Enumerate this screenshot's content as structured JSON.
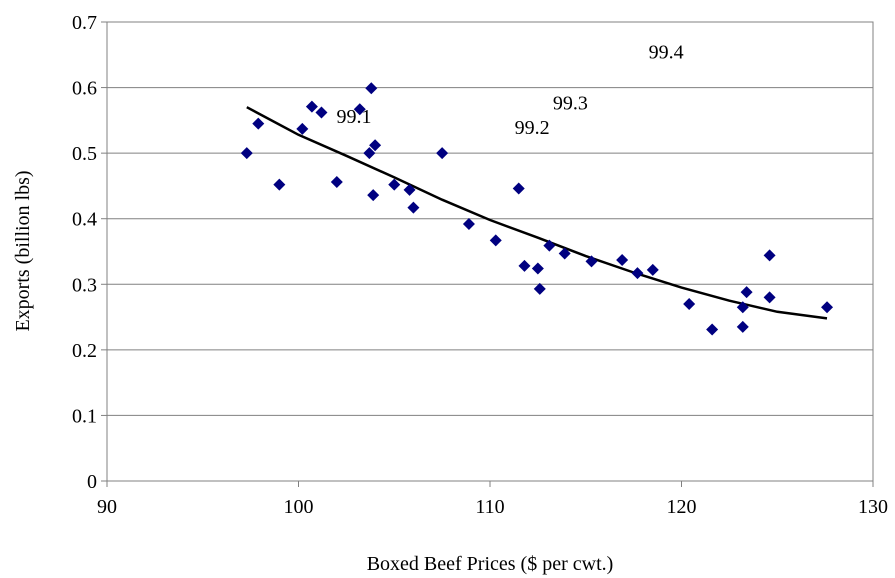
{
  "chart_data": {
    "type": "scatter",
    "xlabel": "Boxed Beef Prices ($ per cwt.)",
    "ylabel": "Exports (billion lbs)",
    "xlim": [
      90,
      130
    ],
    "ylim": [
      0,
      0.7
    ],
    "x_ticks": [
      "90",
      "100",
      "110",
      "120",
      "130"
    ],
    "y_ticks": [
      "0",
      "0.1",
      "0.2",
      "0.3",
      "0.4",
      "0.5",
      "0.6",
      "0.7"
    ],
    "grid": "horizontal",
    "legend": "none",
    "marker": "diamond",
    "colors": {
      "marker": "#000080",
      "trendline": "#000000",
      "grid": "#808080"
    },
    "points": [
      {
        "x": 97.3,
        "y": 0.5
      },
      {
        "x": 97.9,
        "y": 0.545
      },
      {
        "x": 99.0,
        "y": 0.452
      },
      {
        "x": 100.2,
        "y": 0.537
      },
      {
        "x": 100.7,
        "y": 0.571
      },
      {
        "x": 101.2,
        "y": 0.562
      },
      {
        "x": 102.0,
        "y": 0.456
      },
      {
        "x": 103.2,
        "y": 0.567
      },
      {
        "x": 103.7,
        "y": 0.5
      },
      {
        "x": 103.8,
        "y": 0.599
      },
      {
        "x": 103.9,
        "y": 0.436
      },
      {
        "x": 104.0,
        "y": 0.512
      },
      {
        "x": 105.0,
        "y": 0.452
      },
      {
        "x": 105.8,
        "y": 0.444
      },
      {
        "x": 106.0,
        "y": 0.417
      },
      {
        "x": 107.5,
        "y": 0.5
      },
      {
        "x": 108.9,
        "y": 0.392
      },
      {
        "x": 110.3,
        "y": 0.367
      },
      {
        "x": 111.5,
        "y": 0.446
      },
      {
        "x": 111.8,
        "y": 0.328
      },
      {
        "x": 112.5,
        "y": 0.324
      },
      {
        "x": 112.6,
        "y": 0.293
      },
      {
        "x": 113.1,
        "y": 0.359
      },
      {
        "x": 113.9,
        "y": 0.347
      },
      {
        "x": 115.3,
        "y": 0.335
      },
      {
        "x": 116.9,
        "y": 0.337
      },
      {
        "x": 117.7,
        "y": 0.317
      },
      {
        "x": 118.5,
        "y": 0.322
      },
      {
        "x": 120.4,
        "y": 0.27
      },
      {
        "x": 121.6,
        "y": 0.231
      },
      {
        "x": 123.2,
        "y": 0.235
      },
      {
        "x": 123.2,
        "y": 0.265
      },
      {
        "x": 123.4,
        "y": 0.288
      },
      {
        "x": 124.6,
        "y": 0.344
      },
      {
        "x": 124.6,
        "y": 0.28
      },
      {
        "x": 127.6,
        "y": 0.265
      }
    ],
    "trendline": {
      "type": "polynomial",
      "x": [
        97.3,
        100,
        102.5,
        105,
        107.5,
        110,
        112.5,
        115,
        117.5,
        120,
        122.5,
        125,
        127.6
      ],
      "y": [
        0.57,
        0.528,
        0.496,
        0.463,
        0.429,
        0.398,
        0.371,
        0.343,
        0.318,
        0.295,
        0.275,
        0.258,
        0.248
      ]
    },
    "annotations": [
      {
        "text": "99.1",
        "x": 102.9,
        "y": 0.557
      },
      {
        "text": "99.2",
        "x": 112.2,
        "y": 0.54
      },
      {
        "text": "99.3",
        "x": 114.2,
        "y": 0.577
      },
      {
        "text": "99.4",
        "x": 119.2,
        "y": 0.655
      }
    ]
  }
}
